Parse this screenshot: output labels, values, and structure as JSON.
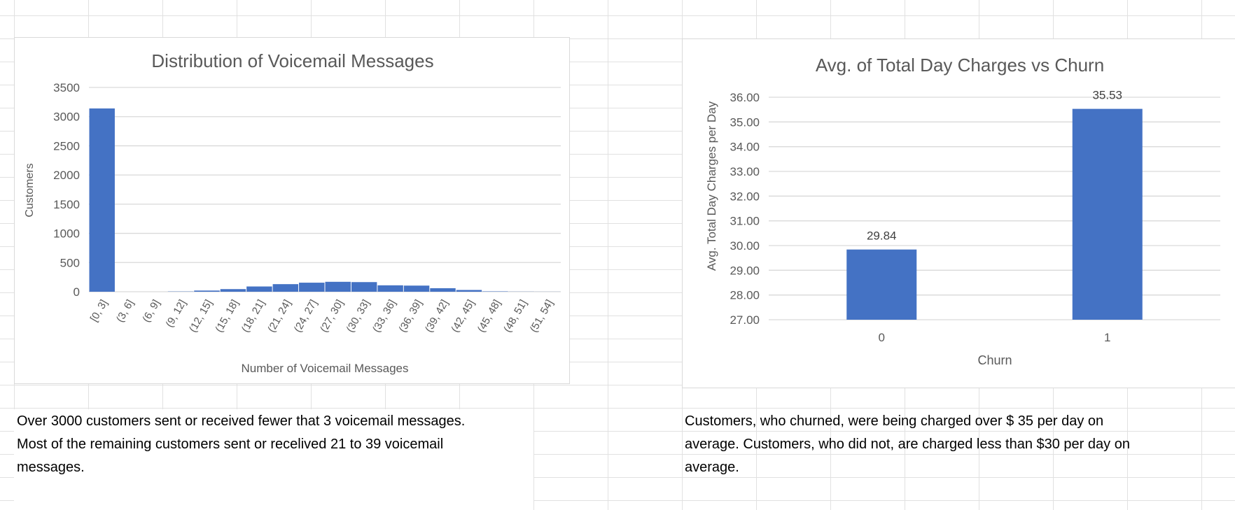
{
  "colors": {
    "bar": "#4472c4",
    "gridline": "#d9d9d9",
    "title_text": "#595959",
    "axis_text": "#595959",
    "cell_border": "#e1e1e1"
  },
  "chart_data": [
    {
      "type": "bar",
      "title": "Distribution of Voicemail Messages",
      "xlabel": "Number of Voicemail Messages",
      "ylabel": "Customers",
      "ylim": [
        0,
        3500
      ],
      "yticks": [
        0,
        500,
        1000,
        1500,
        2000,
        2500,
        3000,
        3500
      ],
      "ytick_labels": [
        "0",
        "500",
        "1000",
        "1500",
        "2000",
        "2500",
        "3000",
        "3500"
      ],
      "grid": true,
      "legend": "none",
      "categories": [
        "[0, 3]",
        "(3, 6]",
        "(6, 9]",
        "(9, 12]",
        "(12, 15]",
        "(15, 18]",
        "(18, 21]",
        "(21, 24]",
        "(24, 27]",
        "(27, 30]",
        "(30, 33]",
        "(33, 36]",
        "(36, 39]",
        "(39, 42]",
        "(42, 45]",
        "(45, 48]",
        "(48, 51]",
        "(51, 54]"
      ],
      "values": [
        3140,
        0,
        0,
        4,
        20,
        45,
        90,
        130,
        155,
        170,
        165,
        110,
        105,
        60,
        30,
        6,
        2,
        1
      ]
    },
    {
      "type": "bar",
      "title": "Avg. of Total Day Charges vs Churn",
      "xlabel": "Churn",
      "ylabel": "Avg. Total Day Charges  per Day",
      "ylim": [
        27,
        36
      ],
      "yticks": [
        27,
        28,
        29,
        30,
        31,
        32,
        33,
        34,
        35,
        36
      ],
      "ytick_labels": [
        "27.00",
        "28.00",
        "29.00",
        "30.00",
        "31.00",
        "32.00",
        "33.00",
        "34.00",
        "35.00",
        "36.00"
      ],
      "grid": true,
      "legend": "none",
      "categories": [
        "0",
        "1"
      ],
      "values": [
        29.84,
        35.53
      ],
      "data_labels": [
        "29.84",
        "35.53"
      ]
    }
  ],
  "notes": {
    "left": [
      "Over 3000 customers sent or received fewer that 3 voicemail messages.",
      "Most of the remaining customers sent or recelived 21 to 39 voicemail",
      "messages."
    ],
    "right": [
      "Customers, who churned, were being charged over $ 35 per day on",
      "average. Customers, who did not, are charged less than $30 per day on",
      "average."
    ]
  }
}
